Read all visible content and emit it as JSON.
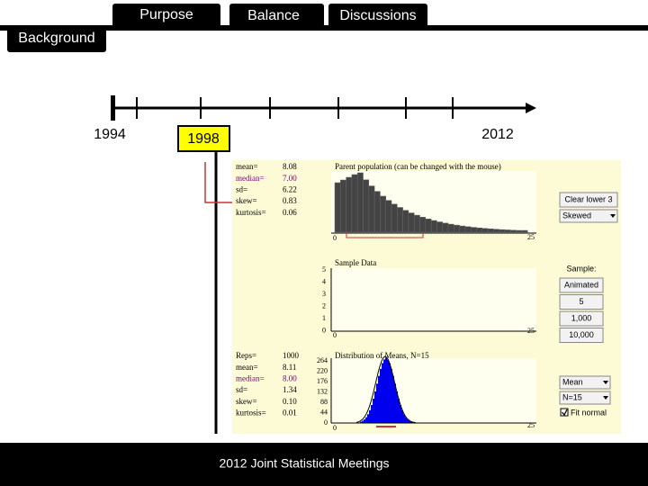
{
  "tabs": [
    "Purpose",
    "Balance",
    "Discussions"
  ],
  "section": "Background",
  "timeline": {
    "start": "1994",
    "highlight": "1998",
    "end": "2012"
  },
  "applet": {
    "parent": {
      "title": "Parent population (can be changed with the mouse)",
      "stats": [
        [
          "mean=",
          "8.08"
        ],
        [
          "median=",
          "7.00"
        ],
        [
          "sd=",
          "6.22"
        ],
        [
          "skew=",
          "0.83"
        ],
        [
          "kurtosis=",
          "0.06"
        ]
      ],
      "x_labels": [
        "0",
        "25"
      ],
      "controls": [
        "Clear lower 3",
        "Skewed"
      ]
    },
    "sample": {
      "title": "Sample Data",
      "y_labels": [
        "5",
        "4",
        "3",
        "2",
        "1",
        "0"
      ],
      "x_labels": [
        "0",
        "25"
      ],
      "controls_title": "Sample:",
      "controls": [
        "Animated",
        "5",
        "1,000",
        "10,000"
      ]
    },
    "means": {
      "title": "Distribution of Means, N=15",
      "stats": [
        [
          "Reps=",
          "1000"
        ],
        [
          "mean=",
          "8.11"
        ],
        [
          "median=",
          "8.00"
        ],
        [
          "sd=",
          "1.34"
        ],
        [
          "skew=",
          "0.10"
        ],
        [
          "kurtosis=",
          "0.01"
        ]
      ],
      "y_labels": [
        "264",
        "220",
        "176",
        "132",
        "88",
        "44",
        "0"
      ],
      "x_labels": [
        "0",
        "25"
      ],
      "controls": [
        "Mean",
        "N=15",
        "Fit normal"
      ]
    }
  },
  "footer": "2012 Joint Statistical Meetings"
}
